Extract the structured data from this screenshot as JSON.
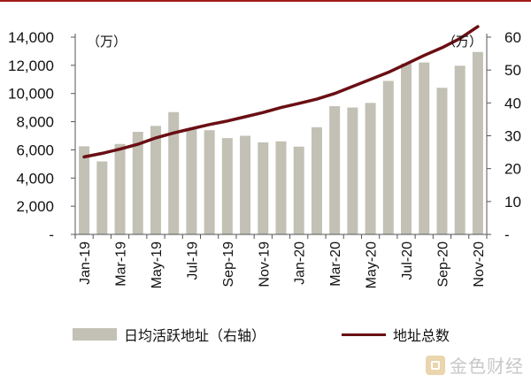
{
  "chart_data": {
    "type": "bar",
    "categories": [
      "Jan-19",
      "Feb-19",
      "Mar-19",
      "Apr-19",
      "May-19",
      "Jun-19",
      "Jul-19",
      "Aug-19",
      "Sep-19",
      "Oct-19",
      "Nov-19",
      "Dec-19",
      "Jan-20",
      "Feb-20",
      "Mar-20",
      "Apr-20",
      "May-20",
      "Jun-20",
      "Jul-20",
      "Aug-20",
      "Sep-20",
      "Oct-20",
      "Nov-20"
    ],
    "x_tick_labels": [
      "Jan-19",
      "Mar-19",
      "May-19",
      "Jul-19",
      "Sep-19",
      "Nov-19",
      "Jan-20",
      "Mar-20",
      "May-20",
      "Jul-20",
      "Sep-20",
      "Nov-20"
    ],
    "series": [
      {
        "name": "日均活跃地址（右轴）",
        "type": "bar",
        "axis": "right",
        "color": "#c3c1b5",
        "values": [
          26.8,
          22.2,
          27.5,
          31.2,
          33.0,
          37.2,
          32.0,
          31.7,
          29.3,
          30.0,
          28.0,
          28.3,
          26.7,
          32.6,
          39.0,
          38.6,
          40.0,
          46.7,
          52.0,
          52.3,
          44.6,
          51.3,
          55.5
        ]
      },
      {
        "name": "地址总数",
        "type": "line",
        "axis": "left",
        "color": "#6a0f14",
        "values": [
          5500,
          5750,
          6050,
          6400,
          6850,
          7200,
          7500,
          7800,
          8050,
          8350,
          8650,
          9000,
          9300,
          9600,
          10000,
          10500,
          11000,
          11500,
          12100,
          12700,
          13250,
          13900,
          14750
        ]
      }
    ],
    "left_axis": {
      "ylim": [
        0,
        14000
      ],
      "ticks": [
        "-",
        "2,000",
        "4,000",
        "6,000",
        "8,000",
        "10,000",
        "12,000",
        "14,000"
      ],
      "unit": "（万）"
    },
    "right_axis": {
      "ylim": [
        0,
        60
      ],
      "ticks": [
        "-",
        "10",
        "20",
        "30",
        "40",
        "50",
        "60"
      ],
      "unit": "（万）"
    },
    "title": "",
    "xlabel": "",
    "ylabel": "",
    "grid": false,
    "legend_placement": "bottom"
  },
  "legend": {
    "bar_label": "日均活跃地址（右轴）",
    "line_label": "地址总数"
  },
  "watermark": {
    "text": "金色财经"
  }
}
